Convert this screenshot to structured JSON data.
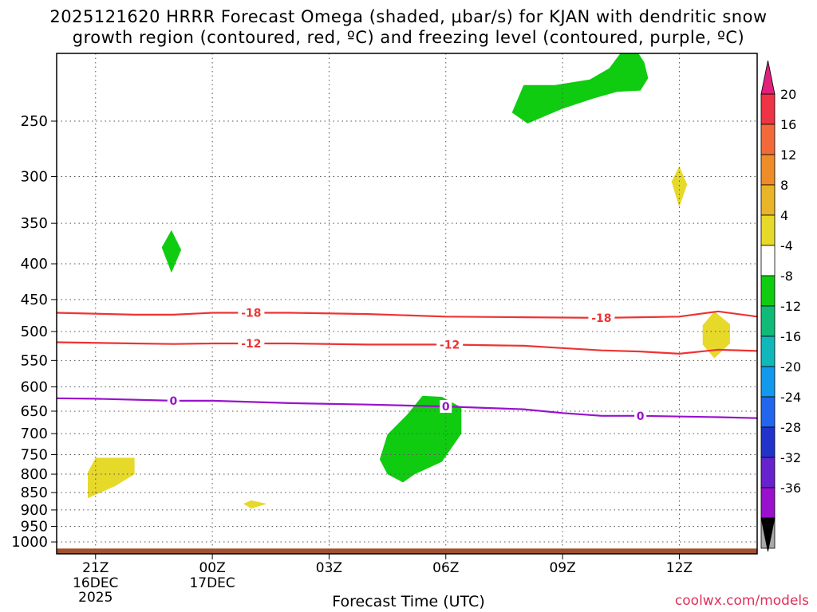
{
  "title": "2025121620 HRRR Forecast Omega (shaded, μbar/s) for KJAN with dendritic snow\ngrowth region (contoured, red, ºC) and freezing level (contoured, purple, ºC)",
  "footer": {
    "credit": "coolwx.com/models"
  },
  "chart_data": {
    "type": "heatmap",
    "title": "2025121620 HRRR Forecast Omega (shaded, μbar/s) for KJAN with dendritic snow growth region (contoured, red, ºC) and freezing level (contoured, purple, ºC)",
    "xlabel": "Forecast Time (UTC)",
    "ylabel": "",
    "x_range_hours": [
      -1,
      17
    ],
    "y_range_hPa": [
      1040,
      200
    ],
    "y_scale": "log",
    "grid": true,
    "x_ticks": [
      {
        "hour": 0,
        "label": "21Z",
        "sub": [
          "16DEC",
          "2025"
        ]
      },
      {
        "hour": 3,
        "label": "00Z",
        "sub": [
          "17DEC"
        ]
      },
      {
        "hour": 6,
        "label": "03Z",
        "sub": []
      },
      {
        "hour": 9,
        "label": "06Z",
        "sub": []
      },
      {
        "hour": 12,
        "label": "09Z",
        "sub": []
      },
      {
        "hour": 15,
        "label": "12Z",
        "sub": []
      }
    ],
    "y_ticks": [
      250,
      300,
      350,
      400,
      450,
      500,
      550,
      600,
      650,
      700,
      750,
      800,
      850,
      900,
      950,
      1000
    ],
    "colorbar": {
      "labels": [
        "20",
        "16",
        "12",
        "8",
        "4",
        "-4",
        "-8",
        "-12",
        "-16",
        "-20",
        "-24",
        "-28",
        "-32",
        "-36"
      ],
      "bins": [
        "#ee3344",
        "#f26a3a",
        "#ee8c28",
        "#e8b428",
        "#e6d92a",
        "#ffffff",
        "#10cc10",
        "#10bb77",
        "#10b8bb",
        "#1199ee",
        "#2266ee",
        "#2233cc",
        "#6622cc",
        "#9911cc",
        "#a8a8a8"
      ],
      "top_arrow": "#e0207a",
      "bottom_arrow": "#000000"
    },
    "isotherms": [
      {
        "label": "-18",
        "color": "#ee3333",
        "points": [
          [
            -1,
            470
          ],
          [
            1,
            473
          ],
          [
            2,
            473
          ],
          [
            3,
            470
          ],
          [
            5,
            470
          ],
          [
            7,
            472
          ],
          [
            9,
            476
          ],
          [
            11,
            477
          ],
          [
            13,
            478
          ],
          [
            14,
            477
          ],
          [
            15,
            476
          ],
          [
            16,
            468
          ],
          [
            17,
            476
          ]
        ],
        "label_hours": [
          4.0,
          13.0
        ]
      },
      {
        "label": "-12",
        "color": "#ee3333",
        "points": [
          [
            -1,
            518
          ],
          [
            1,
            520
          ],
          [
            2,
            521
          ],
          [
            3,
            520
          ],
          [
            5,
            520
          ],
          [
            7,
            522
          ],
          [
            9,
            522
          ],
          [
            11,
            524
          ],
          [
            12,
            528
          ],
          [
            13,
            532
          ],
          [
            14,
            534
          ],
          [
            15,
            538
          ],
          [
            16,
            531
          ],
          [
            17,
            533
          ]
        ],
        "label_hours": [
          4.0,
          9.1
        ]
      },
      {
        "label": "0",
        "color": "#9911cc",
        "points": [
          [
            -1,
            623
          ],
          [
            0,
            624
          ],
          [
            2,
            628
          ],
          [
            3,
            628
          ],
          [
            5,
            633
          ],
          [
            7,
            636
          ],
          [
            9,
            640
          ],
          [
            11,
            646
          ],
          [
            12,
            654
          ],
          [
            13,
            660
          ],
          [
            14,
            660
          ],
          [
            16,
            663
          ],
          [
            17,
            665
          ]
        ],
        "label_hours": [
          2.0,
          9.0,
          14.0
        ]
      }
    ],
    "shaded_regions": [
      {
        "value": -4,
        "color": "#10cc10",
        "points": [
          [
            10.7,
            243
          ],
          [
            11.0,
            222
          ],
          [
            11.8,
            222
          ],
          [
            12.7,
            218
          ],
          [
            13.2,
            210
          ],
          [
            13.6,
            196
          ],
          [
            13.9,
            198
          ],
          [
            14.1,
            206
          ],
          [
            14.2,
            217
          ],
          [
            14.0,
            226
          ],
          [
            13.4,
            227
          ],
          [
            12.8,
            232
          ],
          [
            12.0,
            240
          ],
          [
            11.1,
            252
          ]
        ]
      },
      {
        "value": -4,
        "color": "#10cc10",
        "points": [
          [
            1.7,
            379
          ],
          [
            1.95,
            358
          ],
          [
            2.2,
            382
          ],
          [
            1.95,
            412
          ]
        ]
      },
      {
        "value": -4,
        "color": "#10cc10",
        "points": [
          [
            7.5,
            702
          ],
          [
            8.0,
            658
          ],
          [
            8.4,
            618
          ],
          [
            8.9,
            620
          ],
          [
            9.4,
            642
          ],
          [
            9.4,
            700
          ],
          [
            8.9,
            768
          ],
          [
            8.2,
            800
          ],
          [
            7.9,
            822
          ],
          [
            7.5,
            800
          ],
          [
            7.3,
            762
          ]
        ]
      },
      {
        "value": 4,
        "color": "#e6d92a",
        "points": [
          [
            -0.2,
            795
          ],
          [
            0.0,
            758
          ],
          [
            1.0,
            758
          ],
          [
            1.0,
            800
          ],
          [
            0.5,
            832
          ],
          [
            -0.2,
            866
          ]
        ]
      },
      {
        "value": 4,
        "color": "#e6d92a",
        "points": [
          [
            14.8,
            305
          ],
          [
            15.0,
            290
          ],
          [
            15.2,
            308
          ],
          [
            15.0,
            332
          ]
        ]
      },
      {
        "value": 4,
        "color": "#e6d92a",
        "points": [
          [
            15.6,
            490
          ],
          [
            15.9,
            468
          ],
          [
            16.3,
            488
          ],
          [
            16.3,
            520
          ],
          [
            15.9,
            546
          ],
          [
            15.6,
            522
          ]
        ]
      },
      {
        "value": 4,
        "color": "#e6d92a",
        "points": [
          [
            3.8,
            882
          ],
          [
            4.0,
            872
          ],
          [
            4.4,
            882
          ],
          [
            4.0,
            896
          ]
        ]
      }
    ],
    "ground": {
      "color": "#a0522d",
      "top_hPa": 1022
    }
  }
}
